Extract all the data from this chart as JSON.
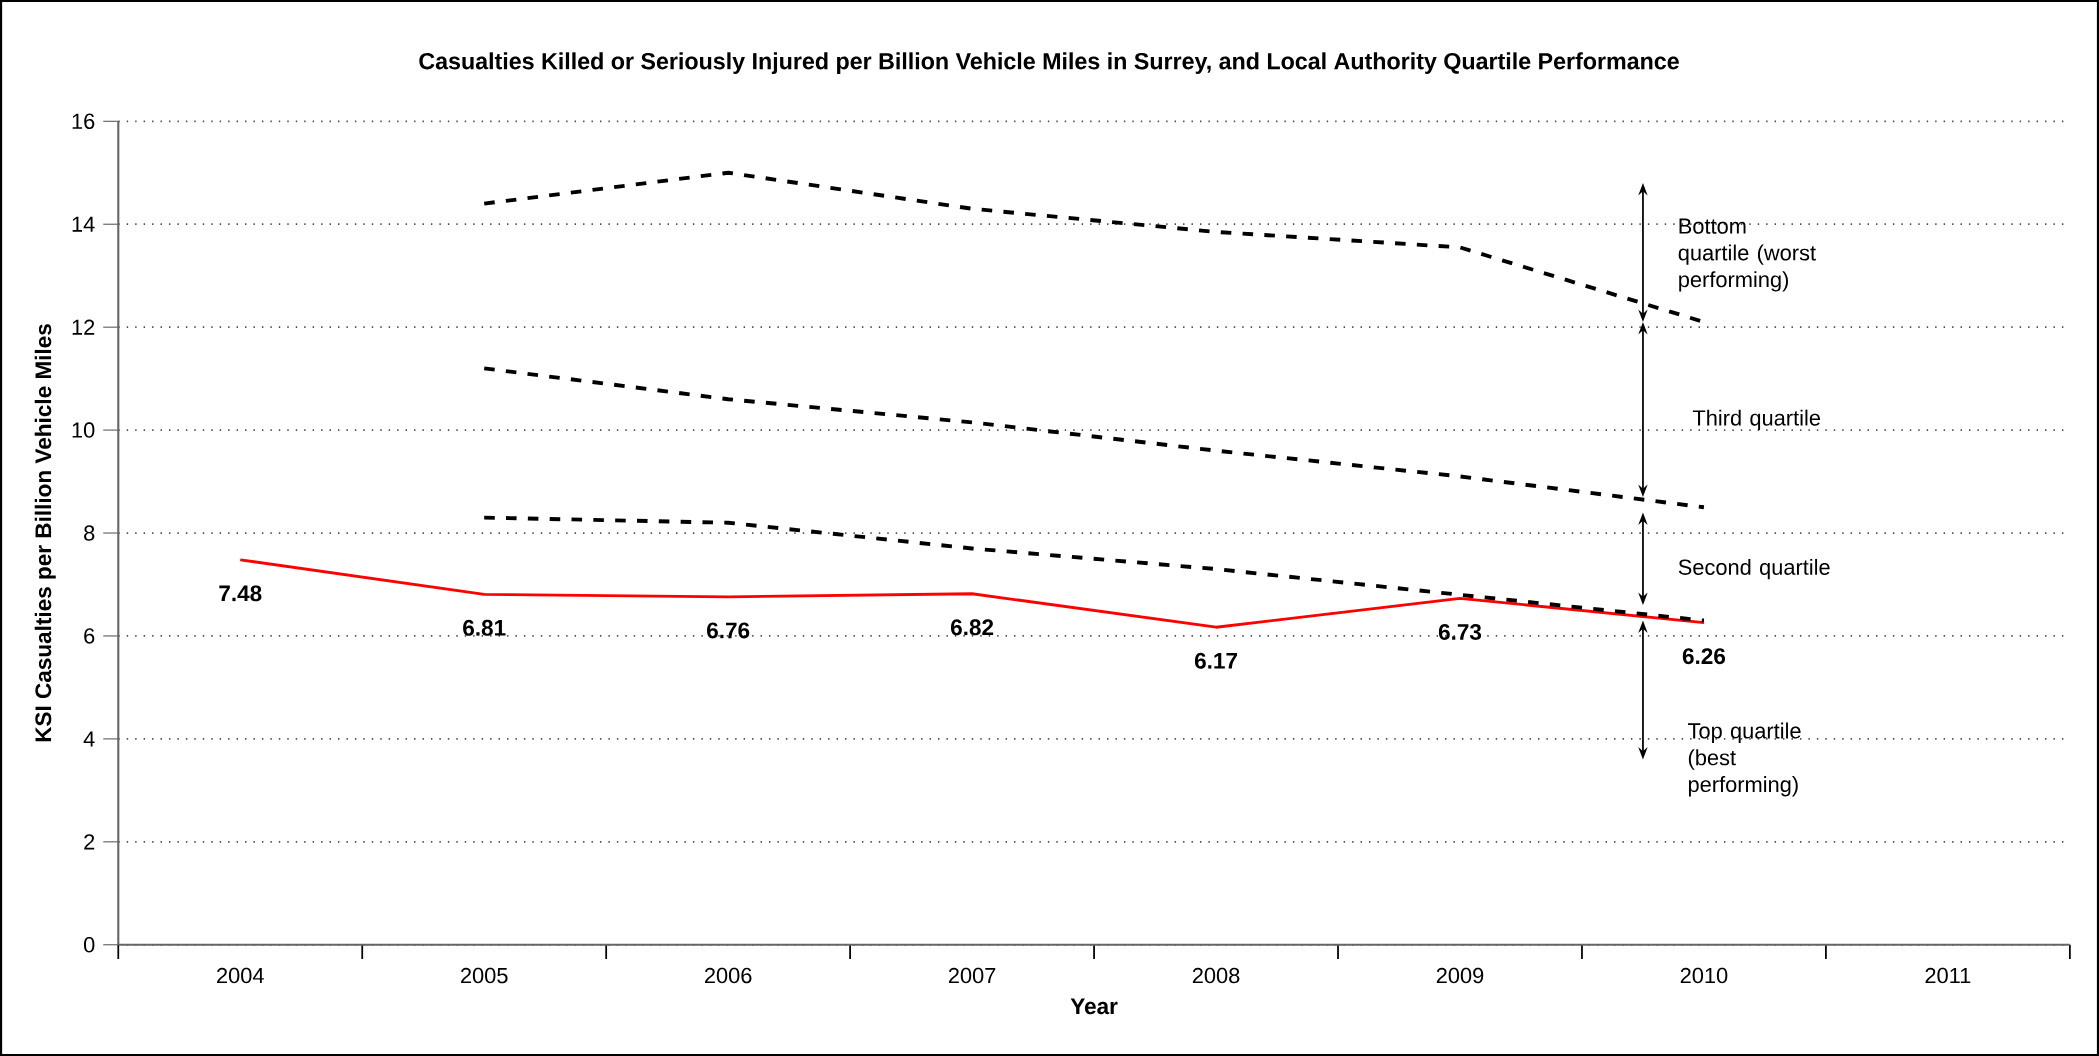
{
  "chart_data": {
    "type": "line",
    "title": "Casualties Killed or Seriously Injured per Billion Vehicle Miles in Surrey, and Local Authority Quartile Performance",
    "xlabel": "Year",
    "ylabel": "KSI Casualties per Billion Vehicle Miles",
    "categories": [
      "2004",
      "2005",
      "2006",
      "2007",
      "2008",
      "2009",
      "2010",
      "2011"
    ],
    "series": [
      {
        "color": "#ff0000",
        "line_style": "solid",
        "data_labels": true,
        "values": [
          7.48,
          6.81,
          6.76,
          6.82,
          6.17,
          6.73,
          6.26,
          null
        ]
      },
      {
        "color": "#000000",
        "line_style": "dashed",
        "values": [
          null,
          14.4,
          15.0,
          14.3,
          13.85,
          13.55,
          12.1,
          null
        ]
      },
      {
        "color": "#000000",
        "line_style": "dashed",
        "values": [
          null,
          11.2,
          10.6,
          10.15,
          9.6,
          9.1,
          8.5,
          null
        ]
      },
      {
        "color": "#000000",
        "line_style": "dashed",
        "values": [
          null,
          8.3,
          8.2,
          7.7,
          7.3,
          6.8,
          6.3,
          null
        ]
      }
    ],
    "ylim": [
      0,
      16
    ],
    "yticks": [
      0,
      2,
      4,
      6,
      8,
      10,
      12,
      14,
      16
    ],
    "grid": "y",
    "marker": "none",
    "annotations": [
      "Bottom quartile (worst performing)",
      "Third quartile",
      "Second quartile",
      "Top quartile (best performing)"
    ]
  }
}
